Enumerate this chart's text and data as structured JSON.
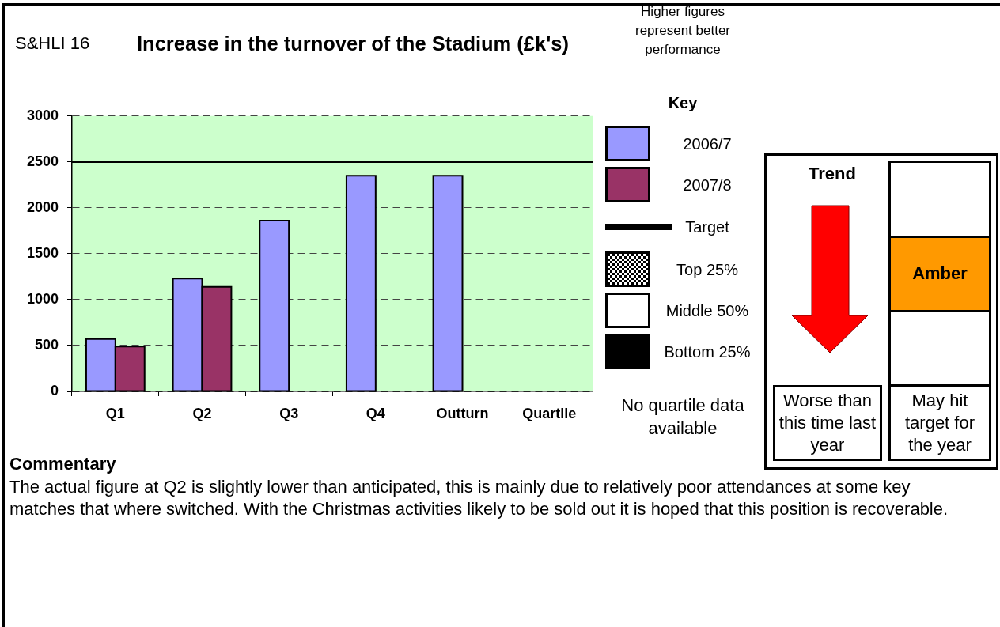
{
  "chart_data": {
    "type": "bar",
    "title": "Increase in the turnover of the Stadium (£k's)",
    "legend_title": "Key",
    "categories": [
      "Q1",
      "Q2",
      "Q3",
      "Q4",
      "Outturn",
      "Quartile"
    ],
    "series": [
      {
        "name": "2006/7",
        "color": "#9999ff",
        "values": [
          570,
          1230,
          1860,
          2350,
          2350,
          null
        ]
      },
      {
        "name": "2007/8",
        "color": "#993366",
        "values": [
          490,
          1140,
          null,
          null,
          null,
          null
        ]
      }
    ],
    "ylim": [
      0,
      3000
    ],
    "yticks": [
      0,
      500,
      1000,
      1500,
      2000,
      2500,
      3000
    ],
    "grid": "y",
    "legend": "right",
    "ref_lines": [
      {
        "axis": "y",
        "value": 2500,
        "label": "Target",
        "color": "#000000"
      }
    ],
    "annotations": [
      "S&HLI 16",
      "Higher figures represent better performance",
      "Top 25%",
      "Middle 50%",
      "Bottom 25%",
      "No quartile data available",
      "Trend",
      "Worse than this time last year",
      "Amber",
      "May hit target for the year",
      "Commentary",
      "The actual figure at Q2 is slightly lower than anticipated, this is mainly due to relatively poor attendances at some key matches that where switched. With the Christmas activities likely to be sold out it is hoped that this position is recoverable."
    ]
  }
}
